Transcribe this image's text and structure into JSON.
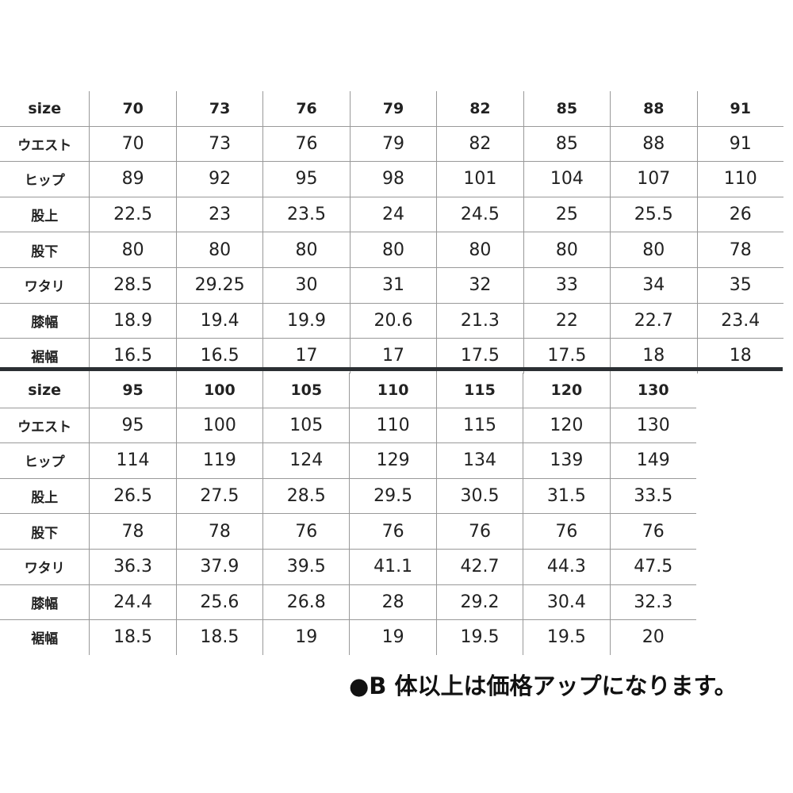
{
  "row_labels": [
    "size",
    "ウエスト",
    "ヒップ",
    "股上",
    "股下",
    "ワタリ",
    "膝幅",
    "裾幅"
  ],
  "table1": {
    "sizes": [
      "70",
      "73",
      "76",
      "79",
      "82",
      "85",
      "88",
      "91"
    ],
    "rows": [
      [
        "70",
        "73",
        "76",
        "79",
        "82",
        "85",
        "88",
        "91"
      ],
      [
        "89",
        "92",
        "95",
        "98",
        "101",
        "104",
        "107",
        "110"
      ],
      [
        "22.5",
        "23",
        "23.5",
        "24",
        "24.5",
        "25",
        "25.5",
        "26"
      ],
      [
        "80",
        "80",
        "80",
        "80",
        "80",
        "80",
        "80",
        "78"
      ],
      [
        "28.5",
        "29.25",
        "30",
        "31",
        "32",
        "33",
        "34",
        "35"
      ],
      [
        "18.9",
        "19.4",
        "19.9",
        "20.6",
        "21.3",
        "22",
        "22.7",
        "23.4"
      ],
      [
        "16.5",
        "16.5",
        "17",
        "17",
        "17.5",
        "17.5",
        "18",
        "18"
      ]
    ]
  },
  "table2": {
    "sizes": [
      "95",
      "100",
      "105",
      "110",
      "115",
      "120",
      "130"
    ],
    "rows": [
      [
        "95",
        "100",
        "105",
        "110",
        "115",
        "120",
        "130"
      ],
      [
        "114",
        "119",
        "124",
        "129",
        "134",
        "139",
        "149"
      ],
      [
        "26.5",
        "27.5",
        "28.5",
        "29.5",
        "30.5",
        "31.5",
        "33.5"
      ],
      [
        "78",
        "78",
        "76",
        "76",
        "76",
        "76",
        "76"
      ],
      [
        "36.3",
        "37.9",
        "39.5",
        "41.1",
        "42.7",
        "44.3",
        "47.5"
      ],
      [
        "24.4",
        "25.6",
        "26.8",
        "28",
        "29.2",
        "30.4",
        "32.3"
      ],
      [
        "18.5",
        "18.5",
        "19",
        "19",
        "19.5",
        "19.5",
        "20"
      ]
    ]
  },
  "note": "●B 体以上は価格アップになります。"
}
